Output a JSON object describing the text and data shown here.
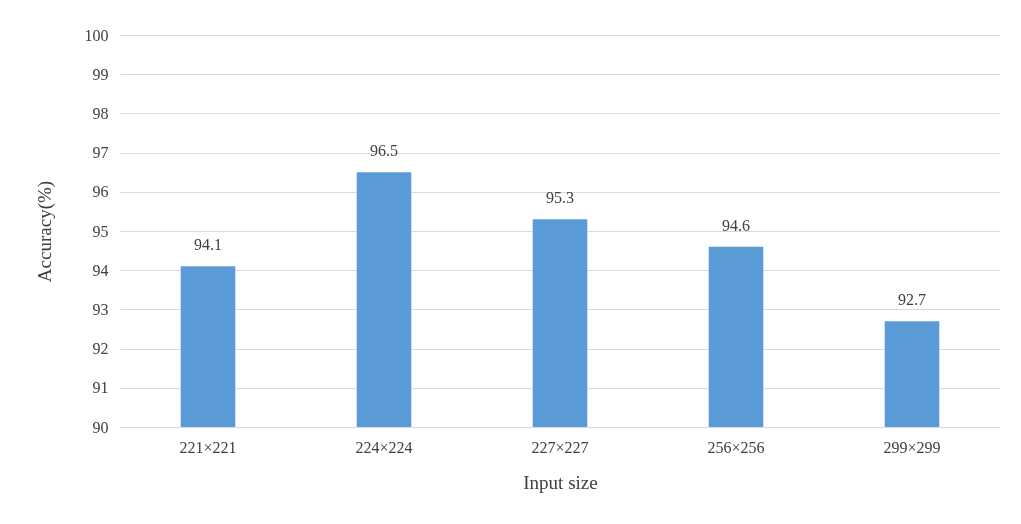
{
  "chart_data": {
    "type": "bar",
    "xlabel": "Input size",
    "ylabel": "Accuracy(%)",
    "categories": [
      "221×221",
      "224×224",
      "227×227",
      "256×256",
      "299×299"
    ],
    "values": [
      94.1,
      96.5,
      95.3,
      94.6,
      92.7
    ],
    "color": "#5b9bd5",
    "ylim": [
      90,
      100
    ],
    "yticks": [
      90,
      91,
      92,
      93,
      94,
      95,
      96,
      97,
      98,
      99,
      100
    ],
    "grid": "y",
    "data_labels": true
  }
}
